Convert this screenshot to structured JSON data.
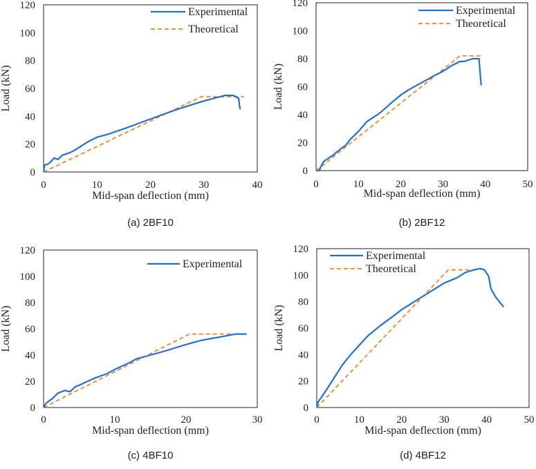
{
  "colors": {
    "experimental": "#1f6fd6",
    "theoretical": "#f58220",
    "axis": "#222222"
  },
  "chart_data": [
    {
      "type": "line",
      "caption": "(a) 2BF10",
      "xlabel": "Mid-span deflection (mm)",
      "ylabel": "Load (kN)",
      "xlim": [
        0,
        40
      ],
      "ylim": [
        0,
        120
      ],
      "xticks": [
        0,
        10,
        20,
        30,
        40
      ],
      "yticks": [
        0,
        20,
        40,
        60,
        80,
        100,
        120
      ],
      "grid": false,
      "legend": "top-right",
      "series": [
        {
          "name": "Experimental",
          "style": "solid",
          "x": [
            0,
            0.2,
            1,
            1.5,
            2,
            2.7,
            3.5,
            5,
            6,
            8,
            10,
            11,
            12,
            15,
            20,
            25,
            30,
            32,
            34,
            35.5,
            36.5,
            36.7,
            36.8
          ],
          "y": [
            0,
            5,
            6,
            8,
            10,
            9,
            12,
            14,
            16,
            21,
            25,
            26,
            27,
            31,
            38,
            45,
            51,
            53,
            55,
            55,
            53,
            47,
            45
          ]
        },
        {
          "name": "Theoretical",
          "style": "dashed",
          "x": [
            0,
            29.5,
            37.5
          ],
          "y": [
            0,
            54,
            54
          ]
        }
      ]
    },
    {
      "type": "line",
      "caption": "(b) 2BF12",
      "xlabel": "Mid-span deflection (mm)",
      "ylabel": "Load (kN)",
      "xlim": [
        0,
        50
      ],
      "ylim": [
        0,
        120
      ],
      "xticks": [
        0,
        10,
        20,
        30,
        40,
        50
      ],
      "yticks": [
        0,
        20,
        40,
        60,
        80,
        100,
        120
      ],
      "grid": false,
      "legend": "top-right",
      "series": [
        {
          "name": "Experimental",
          "style": "solid",
          "x": [
            0,
            0.8,
            1,
            1.5,
            2,
            3,
            4,
            6,
            7,
            8,
            10,
            12,
            15,
            18,
            20,
            22,
            25,
            28,
            30,
            32,
            34,
            35,
            37,
            38.5,
            39
          ],
          "y": [
            0,
            0,
            2,
            5,
            7,
            9,
            11,
            16,
            18,
            22,
            28,
            35,
            41,
            49,
            54,
            58,
            63,
            68,
            71,
            75,
            78,
            78,
            80,
            80,
            61
          ]
        },
        {
          "name": "Theoretical",
          "style": "dashed",
          "x": [
            0,
            34,
            39.5
          ],
          "y": [
            0,
            82,
            82
          ]
        }
      ]
    },
    {
      "type": "line",
      "caption": "(c) 4BF10",
      "xlabel": "Mid-span deflection (mm)",
      "ylabel": "Load (kN)",
      "xlim": [
        0,
        30
      ],
      "ylim": [
        0,
        120
      ],
      "xticks": [
        0,
        10,
        20,
        30
      ],
      "yticks": [
        0,
        20,
        40,
        60,
        80,
        100,
        120
      ],
      "grid": false,
      "legend": "top-right",
      "series": [
        {
          "name": "Experimental",
          "style": "solid",
          "x": [
            0,
            0.3,
            1,
            1.3,
            2,
            3,
            3.7,
            4.5,
            5,
            7,
            8,
            9,
            10,
            12,
            13,
            15,
            17,
            20,
            22,
            25,
            27,
            28.5
          ],
          "y": [
            0,
            3,
            6,
            7,
            11,
            13,
            12,
            16,
            17,
            22,
            24,
            26,
            29,
            34,
            37,
            40,
            43,
            48,
            51,
            54,
            56,
            56
          ]
        },
        {
          "name": "",
          "style": "dashed",
          "x": [
            0,
            20.5,
            28.5
          ],
          "y": [
            0,
            56,
            56
          ]
        }
      ]
    },
    {
      "type": "line",
      "caption": "(d) 4BF12",
      "xlabel": "Mid-span deflection (mm)",
      "ylabel": "Load (kN)",
      "xlim": [
        0,
        50
      ],
      "ylim": [
        0,
        120
      ],
      "xticks": [
        0,
        10,
        20,
        30,
        40,
        50
      ],
      "yticks": [
        0,
        20,
        40,
        60,
        80,
        100,
        120
      ],
      "grid": false,
      "legend": "top-left",
      "series": [
        {
          "name": "Experimental",
          "style": "solid",
          "x": [
            0,
            0.3,
            2,
            4,
            6,
            8,
            10,
            12,
            15,
            18,
            20,
            25,
            30,
            33,
            35,
            37,
            38.5,
            39.5,
            40.5,
            41,
            42,
            43,
            44
          ],
          "y": [
            0,
            4,
            12,
            22,
            32,
            40,
            47,
            54,
            62,
            69,
            74,
            84,
            94,
            98,
            102,
            104,
            105,
            104,
            99,
            90,
            84,
            80,
            76
          ]
        },
        {
          "name": "Theoretical",
          "style": "dashed",
          "x": [
            0,
            31,
            38
          ],
          "y": [
            0,
            104,
            104
          ]
        }
      ]
    }
  ]
}
